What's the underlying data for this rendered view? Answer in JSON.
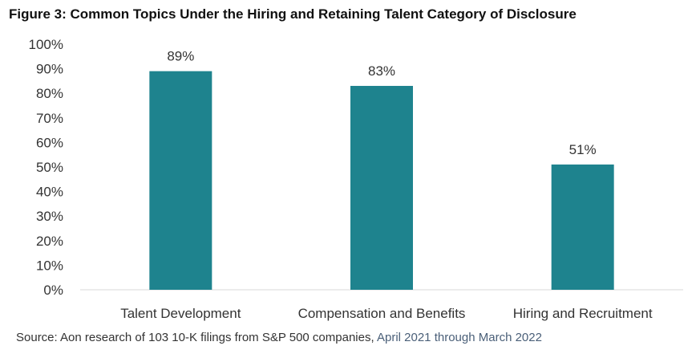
{
  "figure": {
    "title": "Figure 3: Common Topics Under the Hiring and Retaining Talent Category of Disclosure",
    "source_part1": "Source: Aon research of 103 10-K filings from S&P 500 companies,",
    "source_part2": " April 2021 through March 2022"
  },
  "colors": {
    "bar": "#1e838e",
    "axis": "#d9d9d9",
    "text": "#333333"
  },
  "chart_data": {
    "type": "bar",
    "title": "Figure 3: Common Topics Under the Hiring and Retaining Talent Category of Disclosure",
    "categories": [
      "Talent Development",
      "Compensation and Benefits",
      "Hiring and Recruitment"
    ],
    "values": [
      89,
      83,
      51
    ],
    "data_labels": [
      "89%",
      "83%",
      "51%"
    ],
    "ylim": [
      0,
      100
    ],
    "y_ticks": [
      0,
      10,
      20,
      30,
      40,
      50,
      60,
      70,
      80,
      90,
      100
    ],
    "y_tick_labels": [
      "0%",
      "10%",
      "20%",
      "30%",
      "40%",
      "50%",
      "60%",
      "70%",
      "80%",
      "90%",
      "100%"
    ],
    "grid": false,
    "legend": "none"
  }
}
